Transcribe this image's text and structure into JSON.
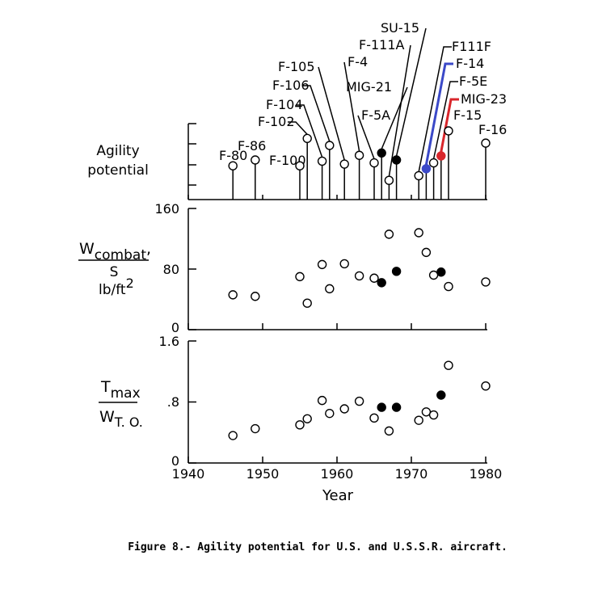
{
  "caption": "Figure 8.- Agility potential for U.S. and U.S.S.R. aircraft.",
  "xlabel": "Year",
  "x_ticks": [
    "1940",
    "1950",
    "1960",
    "1970",
    "1980"
  ],
  "agility": {
    "label_line1": "Agility",
    "label_line2": "potential"
  },
  "wing_loading": {
    "ylabel_num": "W",
    "ylabel_num_sub": "combat",
    "ylabel_comma": ",",
    "ylabel_den": "S",
    "ylabel_unit": "lb/ft",
    "ylabel_unit_sup": "2",
    "y_ticks": [
      "160",
      "80",
      "0"
    ]
  },
  "thrust_weight": {
    "ylabel_num": "T",
    "ylabel_num_sub": "max",
    "ylabel_den": "W",
    "ylabel_den_sub": "T. O.",
    "y_ticks": [
      "1.6",
      ".8",
      "0"
    ]
  },
  "chart_data": [
    {
      "type": "scatter",
      "panel": "agility potential",
      "ylabel": "Agility potential",
      "xlim": [
        1940,
        1980
      ],
      "aircraft": [
        {
          "name": "F-80",
          "year": 1946,
          "agility": 0.4,
          "nation": "US"
        },
        {
          "name": "F-86",
          "year": 1949,
          "agility": 0.5,
          "nation": "US"
        },
        {
          "name": "F-100",
          "year": 1955,
          "agility": 0.4,
          "nation": "US"
        },
        {
          "name": "F-102",
          "year": 1956,
          "agility": 0.87,
          "nation": "US"
        },
        {
          "name": "F-104",
          "year": 1958,
          "agility": 0.48,
          "nation": "US"
        },
        {
          "name": "F-106",
          "year": 1959,
          "agility": 0.75,
          "nation": "US"
        },
        {
          "name": "F-105",
          "year": 1961,
          "agility": 0.43,
          "nation": "US"
        },
        {
          "name": "F-4",
          "year": 1963,
          "agility": 0.58,
          "nation": "US"
        },
        {
          "name": "F-5A",
          "year": 1965,
          "agility": 0.45,
          "nation": "US"
        },
        {
          "name": "MIG-21",
          "year": 1966,
          "agility": 0.62,
          "nation": "USSR"
        },
        {
          "name": "F-111A",
          "year": 1967,
          "agility": 0.15,
          "nation": "US"
        },
        {
          "name": "SU-15",
          "year": 1968,
          "agility": 0.5,
          "nation": "USSR"
        },
        {
          "name": "F111F",
          "year": 1971,
          "agility": 0.23,
          "nation": "US"
        },
        {
          "name": "F-14",
          "year": 1972,
          "agility": 0.35,
          "nation": "US",
          "color": "#3b49c8"
        },
        {
          "name": "F-5E",
          "year": 1973,
          "agility": 0.45,
          "nation": "US"
        },
        {
          "name": "MIG-23",
          "year": 1974,
          "agility": 0.57,
          "nation": "USSR",
          "color": "#d9262b"
        },
        {
          "name": "F-15",
          "year": 1975,
          "agility": 1.0,
          "nation": "US"
        },
        {
          "name": "F-16",
          "year": 1980,
          "agility": 0.79,
          "nation": "US"
        }
      ]
    },
    {
      "type": "scatter",
      "panel": "wing loading",
      "ylabel": "W combat / S, lb/ft2",
      "xlim": [
        1940,
        1980
      ],
      "ylim": [
        0,
        160
      ],
      "points": [
        {
          "year": 1946,
          "value": 46,
          "nation": "US"
        },
        {
          "year": 1949,
          "value": 44,
          "nation": "US"
        },
        {
          "year": 1955,
          "value": 70,
          "nation": "US"
        },
        {
          "year": 1956,
          "value": 35,
          "nation": "US"
        },
        {
          "year": 1958,
          "value": 86,
          "nation": "US"
        },
        {
          "year": 1959,
          "value": 54,
          "nation": "US"
        },
        {
          "year": 1961,
          "value": 87,
          "nation": "US"
        },
        {
          "year": 1963,
          "value": 71,
          "nation": "US"
        },
        {
          "year": 1965,
          "value": 68,
          "nation": "US"
        },
        {
          "year": 1966,
          "value": 62,
          "nation": "USSR"
        },
        {
          "year": 1967,
          "value": 126,
          "nation": "US"
        },
        {
          "year": 1968,
          "value": 77,
          "nation": "USSR"
        },
        {
          "year": 1971,
          "value": 128,
          "nation": "US"
        },
        {
          "year": 1972,
          "value": 102,
          "nation": "US"
        },
        {
          "year": 1973,
          "value": 72,
          "nation": "US"
        },
        {
          "year": 1974,
          "value": 76,
          "nation": "USSR"
        },
        {
          "year": 1975,
          "value": 57,
          "nation": "US"
        },
        {
          "year": 1980,
          "value": 63,
          "nation": "US"
        }
      ]
    },
    {
      "type": "scatter",
      "panel": "thrust to weight",
      "ylabel": "T max / W T.O.",
      "xlim": [
        1940,
        1980
      ],
      "ylim": [
        0,
        1.6
      ],
      "points": [
        {
          "year": 1946,
          "value": 0.36,
          "nation": "US"
        },
        {
          "year": 1949,
          "value": 0.45,
          "nation": "US"
        },
        {
          "year": 1955,
          "value": 0.5,
          "nation": "US"
        },
        {
          "year": 1956,
          "value": 0.58,
          "nation": "US"
        },
        {
          "year": 1958,
          "value": 0.82,
          "nation": "US"
        },
        {
          "year": 1959,
          "value": 0.65,
          "nation": "US"
        },
        {
          "year": 1961,
          "value": 0.71,
          "nation": "US"
        },
        {
          "year": 1963,
          "value": 0.81,
          "nation": "US"
        },
        {
          "year": 1965,
          "value": 0.59,
          "nation": "US"
        },
        {
          "year": 1966,
          "value": 0.73,
          "nation": "USSR"
        },
        {
          "year": 1967,
          "value": 0.42,
          "nation": "US"
        },
        {
          "year": 1968,
          "value": 0.73,
          "nation": "USSR"
        },
        {
          "year": 1971,
          "value": 0.56,
          "nation": "US"
        },
        {
          "year": 1972,
          "value": 0.67,
          "nation": "US"
        },
        {
          "year": 1973,
          "value": 0.63,
          "nation": "US"
        },
        {
          "year": 1974,
          "value": 0.89,
          "nation": "USSR"
        },
        {
          "year": 1975,
          "value": 1.28,
          "nation": "US"
        },
        {
          "year": 1980,
          "value": 1.01,
          "nation": "US"
        }
      ]
    }
  ]
}
